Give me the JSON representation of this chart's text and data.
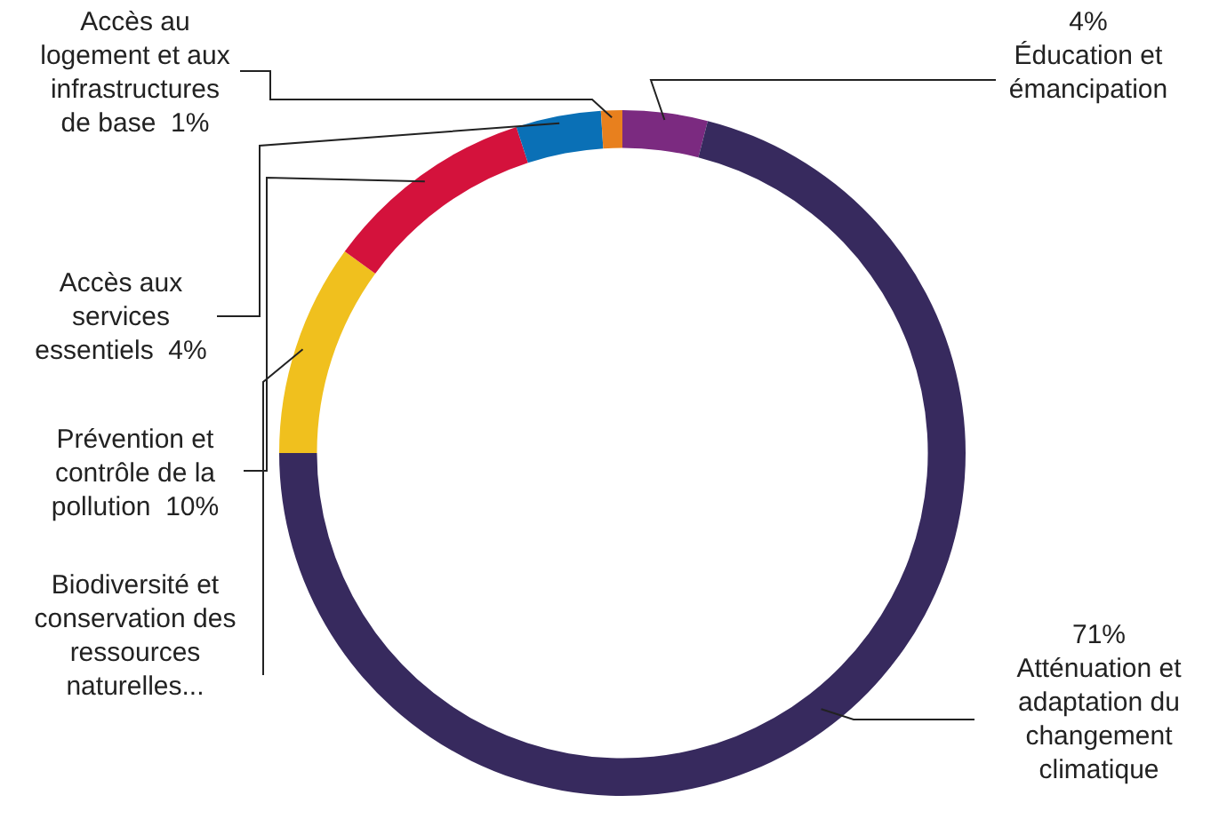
{
  "chart_data": {
    "type": "donut",
    "categories": [
      "Éducation et émancipation",
      "Atténuation et adaptation du changement climatique",
      "Biodiversité et conservation des ressources naturelles...",
      "Prévention et contrôle de la pollution",
      "Accès aux services essentiels",
      "Accès au logement et aux infrastructures de base"
    ],
    "values": [
      4,
      71,
      10,
      10,
      4,
      1
    ],
    "colors": [
      "#7b2a80",
      "#372a5e",
      "#f0c01e",
      "#d4123c",
      "#0a70b6",
      "#e8801e"
    ],
    "value_labels": [
      "4%",
      "71%",
      null,
      "10%",
      "4%",
      "1%"
    ],
    "legend": false
  }
}
